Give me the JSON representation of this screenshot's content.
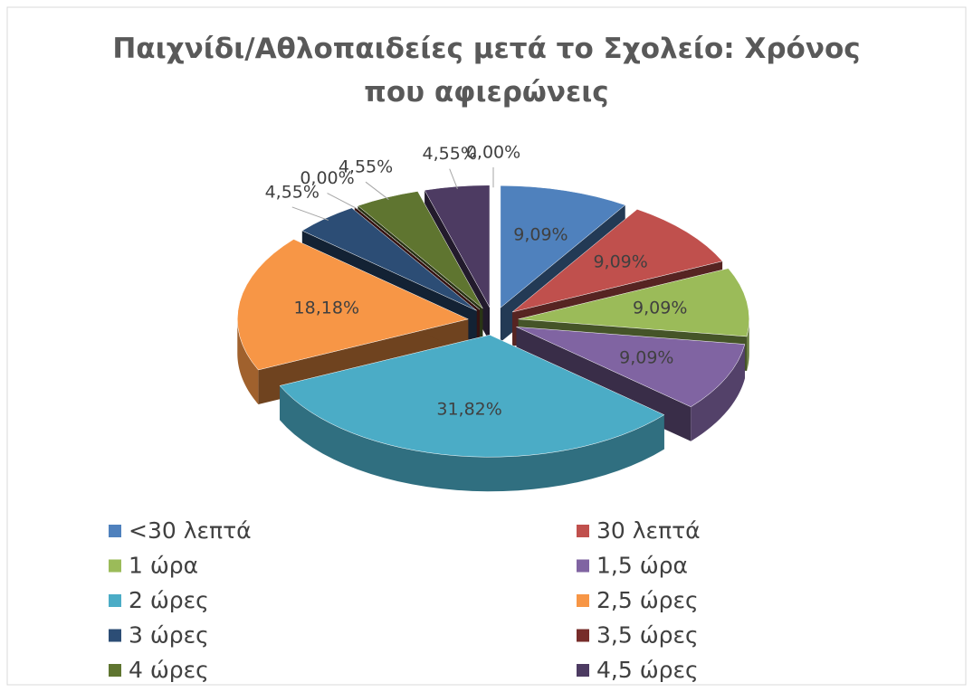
{
  "chart_data": {
    "type": "pie3d",
    "title": "Παιχνίδι/Αθλοπαιδείες μετά το Σχολείο: Χρόνος που αφιερώνεις",
    "categories": [
      "<30 λεπτά",
      "30 λεπτά",
      "1 ώρα",
      "1,5 ώρα",
      "2 ώρες",
      "2,5 ώρες",
      "3 ώρες",
      "3,5 ώρες",
      "4 ώρες",
      "4,5 ώρες",
      null
    ],
    "values": [
      9.09,
      9.09,
      9.09,
      9.09,
      31.82,
      18.18,
      4.55,
      0,
      4.55,
      4.55,
      0
    ],
    "value_labels": [
      "9,09%",
      "9,09%",
      "9,09%",
      "9,09%",
      "31,82%",
      "18,18%",
      "4,55%",
      "0,00%",
      "4,55%",
      "4,55%",
      "0,00%"
    ],
    "colors": [
      "#4f81bd",
      "#c0504d",
      "#9bbb59",
      "#8064a2",
      "#4bacc6",
      "#f79646",
      "#2c4d75",
      "#772c2a",
      "#5f7530",
      "#4d3b62",
      "#729aca"
    ],
    "legend": "bottom"
  }
}
